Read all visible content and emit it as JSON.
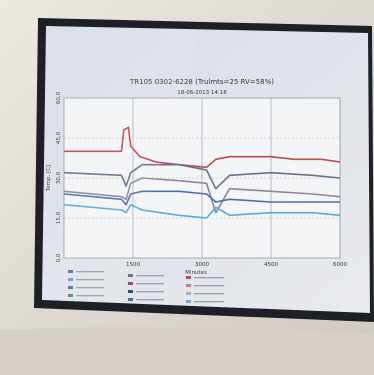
{
  "chart_data": {
    "type": "line",
    "title": "TR105 0302-6228 (Trulmts=25 RV=58%)",
    "subtitle": "18-06-2013 14:18",
    "ylabel": "Temp. [C]",
    "xlabel": "Minutes",
    "xlim": [
      0,
      6000
    ],
    "ylim": [
      0,
      60
    ],
    "x_ticks": [
      "1500",
      "3000",
      "4500",
      "6000"
    ],
    "y_ticks": [
      "0,0",
      "15,0",
      "30,0",
      "45,0",
      "60,0"
    ],
    "grid": true,
    "series": [
      {
        "color": "#c04a52",
        "x": [
          0,
          1250,
          1300,
          1400,
          1450,
          1650,
          2000,
          2500,
          3100,
          3300,
          3600,
          4500,
          5000,
          5600,
          6000
        ],
        "y": [
          40,
          40,
          48,
          49,
          42,
          38,
          36,
          35,
          34,
          37,
          38,
          38,
          37,
          37,
          36
        ]
      },
      {
        "color": "#6b6f8a",
        "x": [
          0,
          1250,
          1350,
          1450,
          1700,
          2500,
          3100,
          3300,
          3600,
          4500,
          5400,
          6000
        ],
        "y": [
          32,
          31,
          27,
          32,
          35,
          35,
          33,
          26,
          31,
          32,
          31,
          30
        ]
      },
      {
        "color": "#8a8898",
        "x": [
          0,
          1250,
          1350,
          1450,
          1700,
          2500,
          3100,
          3300,
          3600,
          4500,
          5400,
          6000
        ],
        "y": [
          25,
          23,
          22,
          28,
          30,
          29,
          28,
          17,
          26,
          25,
          24,
          23
        ]
      },
      {
        "color": "#4a6fa8",
        "x": [
          0,
          1250,
          1350,
          1450,
          1700,
          2500,
          3100,
          3300,
          3600,
          4500,
          5400,
          6000
        ],
        "y": [
          24,
          22,
          20,
          24,
          25,
          25,
          24,
          21,
          22,
          21,
          21,
          21
        ]
      },
      {
        "color": "#5aa8e0",
        "x": [
          0,
          1250,
          1350,
          1450,
          1700,
          2500,
          3100,
          3300,
          3600,
          4500,
          5400,
          6000
        ],
        "y": [
          20,
          18,
          17,
          20,
          18,
          16,
          15,
          19,
          16,
          17,
          17,
          16
        ]
      }
    ]
  }
}
